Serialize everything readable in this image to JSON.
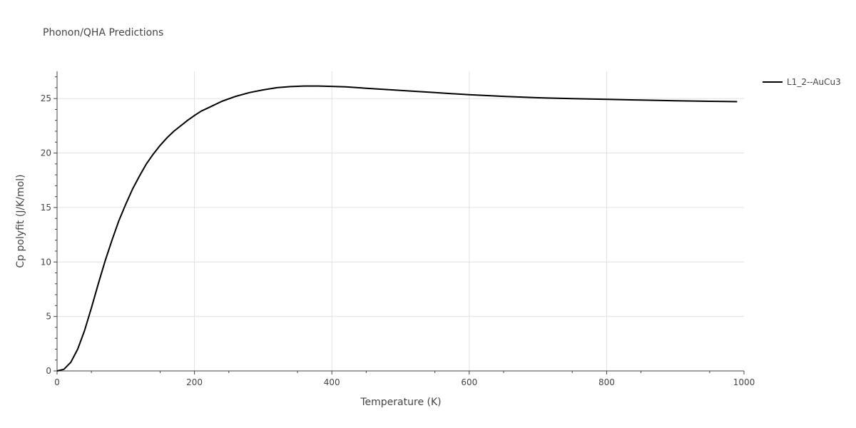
{
  "chart_data": {
    "type": "line",
    "title": "Phonon/QHA Predictions",
    "xlabel": "Temperature (K)",
    "ylabel": "Cp polyfit (J/K/mol)",
    "xlim": [
      0,
      1000
    ],
    "ylim": [
      0,
      27.5
    ],
    "xticks": [
      "0",
      "200",
      "400",
      "600",
      "800",
      "1000"
    ],
    "yticks": [
      "0",
      "5",
      "10",
      "15",
      "20",
      "25"
    ],
    "grid": true,
    "legend_position": "top-right",
    "colors": {
      "line": "#000000",
      "grid": "#e0e0e0",
      "axis": "#444444"
    },
    "series": [
      {
        "name": "L1_2--AuCu3",
        "x": [
          0,
          10,
          20,
          30,
          40,
          50,
          60,
          70,
          80,
          90,
          100,
          110,
          120,
          130,
          140,
          150,
          160,
          170,
          180,
          190,
          200,
          210,
          220,
          240,
          260,
          280,
          300,
          320,
          340,
          360,
          380,
          400,
          420,
          450,
          500,
          550,
          600,
          650,
          700,
          750,
          800,
          850,
          900,
          950,
          990
        ],
        "y": [
          0,
          0.15,
          0.8,
          2.0,
          3.7,
          5.8,
          8.0,
          10.1,
          12.0,
          13.8,
          15.3,
          16.7,
          17.9,
          19.0,
          19.9,
          20.7,
          21.4,
          22.0,
          22.5,
          23.0,
          23.45,
          23.85,
          24.15,
          24.75,
          25.2,
          25.55,
          25.8,
          26.0,
          26.1,
          26.15,
          26.15,
          26.12,
          26.08,
          25.95,
          25.75,
          25.55,
          25.35,
          25.2,
          25.08,
          25.0,
          24.93,
          24.86,
          24.8,
          24.75,
          24.72
        ]
      }
    ]
  }
}
